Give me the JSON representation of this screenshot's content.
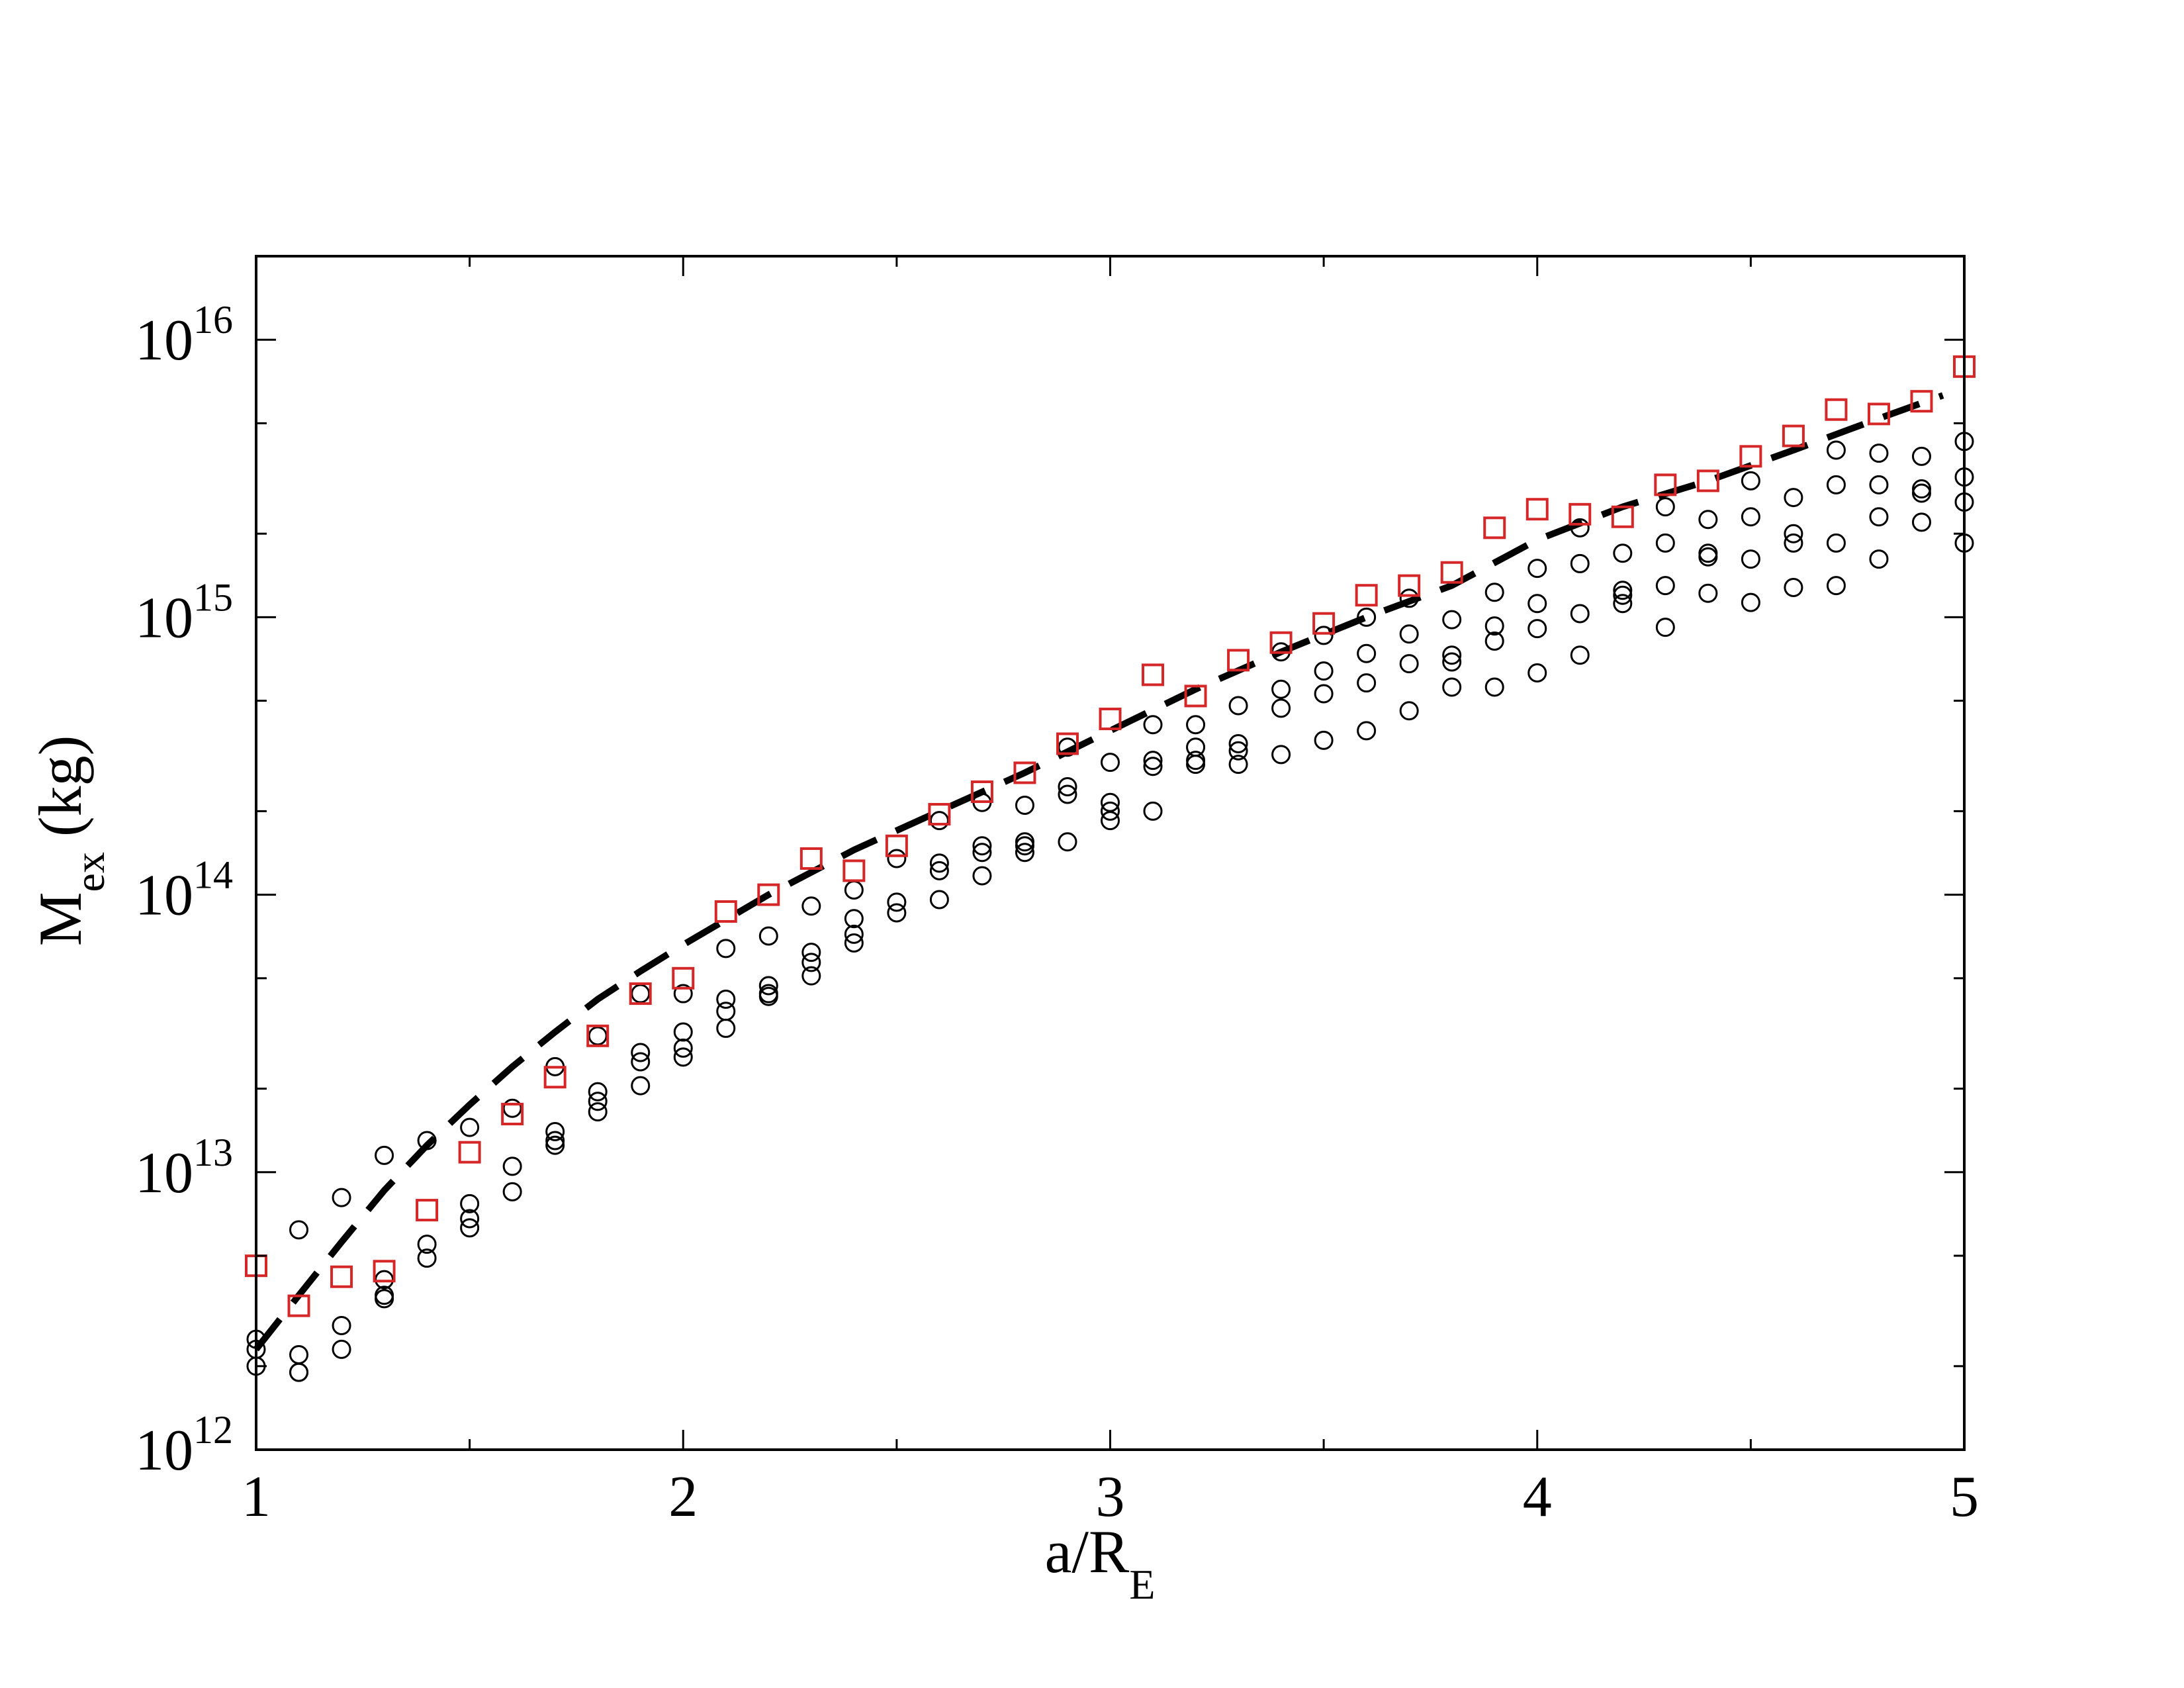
{
  "chart_data": {
    "type": "scatter",
    "title": "",
    "xlabel": {
      "main": "a/R",
      "sub": "E"
    },
    "ylabel": {
      "main": "M",
      "sub": "ex",
      "unit": " (kg)"
    },
    "xlim": [
      1,
      5
    ],
    "ylim": [
      1000000000000.0,
      2e+16
    ],
    "yscale": "log",
    "grid": false,
    "x_ticks": [
      1,
      2,
      3,
      4,
      5
    ],
    "y_ticks": [
      {
        "base": "10",
        "exp": "12",
        "value": 1000000000000.0
      },
      {
        "base": "10",
        "exp": "13",
        "value": 10000000000000.0
      },
      {
        "base": "10",
        "exp": "14",
        "value": 100000000000000.0
      },
      {
        "base": "10",
        "exp": "15",
        "value": 1000000000000000.0
      },
      {
        "base": "10",
        "exp": "16",
        "value": 1e+16
      }
    ],
    "colors": {
      "axis": "#000000",
      "circles": "#000000",
      "squares": "#d62728",
      "curve": "#000000"
    },
    "series": [
      {
        "marker": "circle",
        "points": [
          [
            1.0,
            2500000000000.0
          ],
          [
            1.0,
            2300000000000.0
          ],
          [
            1.0,
            2000000000000.0
          ],
          [
            1.1,
            6200000000000.0
          ],
          [
            1.1,
            2200000000000.0
          ],
          [
            1.1,
            1900000000000.0
          ],
          [
            1.1,
            1900000000000.0
          ],
          [
            1.2,
            8100000000000.0
          ],
          [
            1.2,
            2800000000000.0
          ],
          [
            1.2,
            2300000000000.0
          ],
          [
            1.3,
            11500000000000.0
          ],
          [
            1.3,
            4100000000000.0
          ],
          [
            1.3,
            3600000000000.0
          ],
          [
            1.3,
            3500000000000.0
          ],
          [
            1.4,
            13000000000000.0
          ],
          [
            1.4,
            5500000000000.0
          ],
          [
            1.4,
            4900000000000.0
          ],
          [
            1.5,
            14500000000000.0
          ],
          [
            1.5,
            7700000000000.0
          ],
          [
            1.5,
            6800000000000.0
          ],
          [
            1.5,
            6300000000000.0
          ],
          [
            1.6,
            17000000000000.0
          ],
          [
            1.6,
            10500000000000.0
          ],
          [
            1.6,
            8500000000000.0
          ],
          [
            1.7,
            24000000000000.0
          ],
          [
            1.7,
            14000000000000.0
          ],
          [
            1.7,
            13000000000000.0
          ],
          [
            1.7,
            12500000000000.0
          ],
          [
            1.8,
            31000000000000.0
          ],
          [
            1.8,
            19500000000000.0
          ],
          [
            1.8,
            18000000000000.0
          ],
          [
            1.8,
            16500000000000.0
          ],
          [
            1.9,
            44000000000000.0
          ],
          [
            1.9,
            27000000000000.0
          ],
          [
            1.9,
            25000000000000.0
          ],
          [
            1.9,
            20500000000000.0
          ],
          [
            2.0,
            44000000000000.0
          ],
          [
            2.0,
            32000000000000.0
          ],
          [
            2.0,
            28000000000000.0
          ],
          [
            2.0,
            26000000000000.0
          ],
          [
            2.1,
            64000000000000.0
          ],
          [
            2.1,
            42000000000000.0
          ],
          [
            2.1,
            38000000000000.0
          ],
          [
            2.1,
            33000000000000.0
          ],
          [
            2.2,
            71000000000000.0
          ],
          [
            2.2,
            47000000000000.0
          ],
          [
            2.2,
            44000000000000.0
          ],
          [
            2.2,
            43000000000000.0
          ],
          [
            2.3,
            91000000000000.0
          ],
          [
            2.3,
            62000000000000.0
          ],
          [
            2.3,
            57000000000000.0
          ],
          [
            2.3,
            51000000000000.0
          ],
          [
            2.4,
            104000000000000.0
          ],
          [
            2.4,
            82000000000000.0
          ],
          [
            2.4,
            72000000000000.0
          ],
          [
            2.4,
            67000000000000.0
          ],
          [
            2.5,
            135000000000000.0
          ],
          [
            2.5,
            94000000000000.0
          ],
          [
            2.5,
            86000000000000.0
          ],
          [
            2.6,
            185000000000000.0
          ],
          [
            2.6,
            130000000000000.0
          ],
          [
            2.6,
            122000000000000.0
          ],
          [
            2.6,
            96000000000000.0
          ],
          [
            2.7,
            215000000000000.0
          ],
          [
            2.7,
            150000000000000.0
          ],
          [
            2.7,
            142000000000000.0
          ],
          [
            2.7,
            117000000000000.0
          ],
          [
            2.8,
            210000000000000.0
          ],
          [
            2.8,
            155000000000000.0
          ],
          [
            2.8,
            150000000000000.0
          ],
          [
            2.8,
            142000000000000.0
          ],
          [
            2.9,
            340000000000000.0
          ],
          [
            2.9,
            245000000000000.0
          ],
          [
            2.9,
            230000000000000.0
          ],
          [
            2.9,
            155000000000000.0
          ],
          [
            3.0,
            300000000000000.0
          ],
          [
            3.0,
            215000000000000.0
          ],
          [
            3.0,
            200000000000000.0
          ],
          [
            3.0,
            185000000000000.0
          ],
          [
            3.1,
            410000000000000.0
          ],
          [
            3.1,
            305000000000000.0
          ],
          [
            3.1,
            290000000000000.0
          ],
          [
            3.1,
            200000000000000.0
          ],
          [
            3.2,
            410000000000000.0
          ],
          [
            3.2,
            340000000000000.0
          ],
          [
            3.2,
            305000000000000.0
          ],
          [
            3.2,
            295000000000000.0
          ],
          [
            3.3,
            480000000000000.0
          ],
          [
            3.3,
            350000000000000.0
          ],
          [
            3.3,
            330000000000000.0
          ],
          [
            3.3,
            295000000000000.0
          ],
          [
            3.4,
            750000000000000.0
          ],
          [
            3.4,
            550000000000000.0
          ],
          [
            3.4,
            470000000000000.0
          ],
          [
            3.4,
            320000000000000.0
          ],
          [
            3.5,
            860000000000000.0
          ],
          [
            3.5,
            640000000000000.0
          ],
          [
            3.5,
            530000000000000.0
          ],
          [
            3.5,
            360000000000000.0
          ],
          [
            3.6,
            1000000000000000.0
          ],
          [
            3.6,
            740000000000000.0
          ],
          [
            3.6,
            580000000000000.0
          ],
          [
            3.6,
            390000000000000.0
          ],
          [
            3.7,
            1170000000000000.0
          ],
          [
            3.7,
            870000000000000.0
          ],
          [
            3.7,
            680000000000000.0
          ],
          [
            3.7,
            460000000000000.0
          ],
          [
            3.8,
            980000000000000.0
          ],
          [
            3.8,
            730000000000000.0
          ],
          [
            3.8,
            690000000000000.0
          ],
          [
            3.8,
            560000000000000.0
          ],
          [
            3.9,
            1230000000000000.0
          ],
          [
            3.9,
            930000000000000.0
          ],
          [
            3.9,
            820000000000000.0
          ],
          [
            3.9,
            560000000000000.0
          ],
          [
            4.0,
            1500000000000000.0
          ],
          [
            4.0,
            1120000000000000.0
          ],
          [
            4.0,
            910000000000000.0
          ],
          [
            4.0,
            630000000000000.0
          ],
          [
            4.1,
            2100000000000000.0
          ],
          [
            4.1,
            1560000000000000.0
          ],
          [
            4.1,
            1030000000000000.0
          ],
          [
            4.1,
            730000000000000.0
          ],
          [
            4.2,
            1700000000000000.0
          ],
          [
            4.2,
            1250000000000000.0
          ],
          [
            4.2,
            1200000000000000.0
          ],
          [
            4.2,
            1120000000000000.0
          ],
          [
            4.3,
            2500000000000000.0
          ],
          [
            4.3,
            1850000000000000.0
          ],
          [
            4.3,
            1300000000000000.0
          ],
          [
            4.3,
            920000000000000.0
          ],
          [
            4.4,
            2250000000000000.0
          ],
          [
            4.4,
            1700000000000000.0
          ],
          [
            4.4,
            1650000000000000.0
          ],
          [
            4.4,
            1220000000000000.0
          ],
          [
            4.5,
            3100000000000000.0
          ],
          [
            4.5,
            2300000000000000.0
          ],
          [
            4.5,
            1620000000000000.0
          ],
          [
            4.5,
            1130000000000000.0
          ],
          [
            4.6,
            2700000000000000.0
          ],
          [
            4.6,
            2000000000000000.0
          ],
          [
            4.6,
            1850000000000000.0
          ],
          [
            4.6,
            1280000000000000.0
          ],
          [
            4.7,
            4000000000000000.0
          ],
          [
            4.7,
            3000000000000000.0
          ],
          [
            4.7,
            1850000000000000.0
          ],
          [
            4.7,
            1300000000000000.0
          ],
          [
            4.8,
            3900000000000000.0
          ],
          [
            4.8,
            3000000000000000.0
          ],
          [
            4.8,
            2300000000000000.0
          ],
          [
            4.8,
            1620000000000000.0
          ],
          [
            4.9,
            3800000000000000.0
          ],
          [
            4.9,
            2900000000000000.0
          ],
          [
            4.9,
            2800000000000000.0
          ],
          [
            4.9,
            2200000000000000.0
          ],
          [
            5.0,
            4300000000000000.0
          ],
          [
            5.0,
            3200000000000000.0
          ],
          [
            5.0,
            2600000000000000.0
          ],
          [
            5.0,
            1850000000000000.0
          ]
        ]
      },
      {
        "marker": "square",
        "points": [
          [
            1.0,
            4600000000000.0
          ],
          [
            1.1,
            3300000000000.0
          ],
          [
            1.2,
            4200000000000.0
          ],
          [
            1.3,
            4400000000000.0
          ],
          [
            1.4,
            7300000000000.0
          ],
          [
            1.5,
            11800000000000.0
          ],
          [
            1.6,
            16200000000000.0
          ],
          [
            1.7,
            22000000000000.0
          ],
          [
            1.8,
            31000000000000.0
          ],
          [
            1.9,
            44000000000000.0
          ],
          [
            2.0,
            50000000000000.0
          ],
          [
            2.1,
            87000000000000.0
          ],
          [
            2.2,
            100000000000000.0
          ],
          [
            2.3,
            135000000000000.0
          ],
          [
            2.4,
            122000000000000.0
          ],
          [
            2.5,
            150000000000000.0
          ],
          [
            2.6,
            195000000000000.0
          ],
          [
            2.7,
            235000000000000.0
          ],
          [
            2.8,
            275000000000000.0
          ],
          [
            2.9,
            350000000000000.0
          ],
          [
            3.0,
            430000000000000.0
          ],
          [
            3.1,
            620000000000000.0
          ],
          [
            3.2,
            520000000000000.0
          ],
          [
            3.3,
            700000000000000.0
          ],
          [
            3.4,
            810000000000000.0
          ],
          [
            3.5,
            950000000000000.0
          ],
          [
            3.6,
            1200000000000000.0
          ],
          [
            3.7,
            1300000000000000.0
          ],
          [
            3.8,
            1450000000000000.0
          ],
          [
            3.9,
            2100000000000000.0
          ],
          [
            4.0,
            2450000000000000.0
          ],
          [
            4.1,
            2350000000000000.0
          ],
          [
            4.2,
            2300000000000000.0
          ],
          [
            4.3,
            3000000000000000.0
          ],
          [
            4.4,
            3100000000000000.0
          ],
          [
            4.5,
            3800000000000000.0
          ],
          [
            4.6,
            4500000000000000.0
          ],
          [
            4.7,
            5600000000000000.0
          ],
          [
            4.8,
            5400000000000000.0
          ],
          [
            4.9,
            6000000000000000.0
          ],
          [
            5.0,
            8000000000000000.0
          ]
        ]
      },
      {
        "marker": "dashed-line",
        "points": [
          [
            1.0,
            2300000000000.0
          ],
          [
            1.1,
            3600000000000.0
          ],
          [
            1.2,
            5600000000000.0
          ],
          [
            1.3,
            8600000000000.0
          ],
          [
            1.4,
            12500000000000.0
          ],
          [
            1.5,
            17500000000000.0
          ],
          [
            1.6,
            24000000000000.0
          ],
          [
            1.7,
            32000000000000.0
          ],
          [
            1.8,
            42000000000000.0
          ],
          [
            1.9,
            53000000000000.0
          ],
          [
            2.0,
            66000000000000.0
          ],
          [
            2.2,
            100000000000000.0
          ],
          [
            2.4,
            145000000000000.0
          ],
          [
            2.6,
            200000000000000.0
          ],
          [
            2.8,
            275000000000000.0
          ],
          [
            3.0,
            390000000000000.0
          ],
          [
            3.2,
            550000000000000.0
          ],
          [
            3.4,
            750000000000000.0
          ],
          [
            3.6,
            1000000000000000.0
          ],
          [
            3.8,
            1300000000000000.0
          ],
          [
            4.0,
            1900000000000000.0
          ],
          [
            4.2,
            2500000000000000.0
          ],
          [
            4.4,
            3100000000000000.0
          ],
          [
            4.6,
            4000000000000000.0
          ],
          [
            4.8,
            5200000000000000.0
          ],
          [
            4.95,
            6300000000000000.0
          ]
        ]
      }
    ]
  }
}
